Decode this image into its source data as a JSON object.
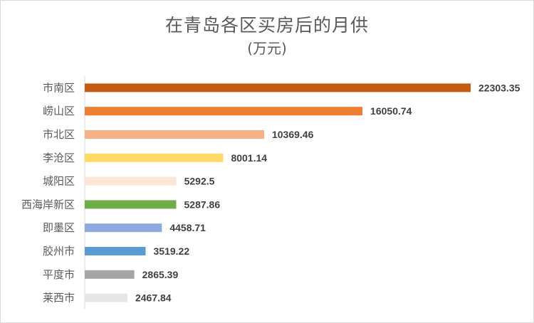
{
  "chart_data": {
    "type": "bar",
    "orientation": "horizontal",
    "title": "在青岛各区买房后的月供",
    "subtitle": "(万元)",
    "categories": [
      "市南区",
      "崂山区",
      "市北区",
      "李沧区",
      "城阳区",
      "西海岸新区",
      "即墨区",
      "胶州市",
      "平度市",
      "莱西市"
    ],
    "values": [
      22303.35,
      16050.74,
      10369.46,
      8001.14,
      5292.5,
      5287.86,
      4458.71,
      3519.22,
      2865.39,
      2467.84
    ],
    "value_labels": [
      "22303.35",
      "16050.74",
      "10369.46",
      "8001.14",
      "5292.5",
      "5287.86",
      "4458.71",
      "3519.22",
      "2865.39",
      "2467.84"
    ],
    "colors": [
      "#c55a11",
      "#ed7d31",
      "#f4b183",
      "#ffd966",
      "#fbe5d6",
      "#70ad47",
      "#8faadc",
      "#5b9bd5",
      "#a5a5a5",
      "#e7e6e6"
    ],
    "xlim": [
      0,
      22303.35
    ],
    "grid": false,
    "legend": "none"
  }
}
